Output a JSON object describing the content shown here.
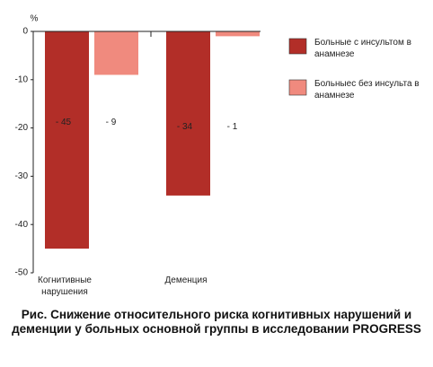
{
  "chart_data": {
    "type": "bar",
    "title": "Рис. Снижение относительного риска когнитивных нарушений и деменции у больных основной группы в исследовании PROGRESS",
    "y_label": "%",
    "categories": [
      "Когнитивные нарушения",
      "Деменция"
    ],
    "series": [
      {
        "name": "Больные с инсультом в анамнезе",
        "color": "#b22e28",
        "values": [
          -45,
          -34
        ],
        "value_labels": [
          "- 45",
          "- 34"
        ]
      },
      {
        "name": "Больныес без инсульта в анамнезе",
        "color": "#f08a7e",
        "values": [
          -9,
          -1
        ],
        "value_labels": [
          "- 9",
          "- 1"
        ]
      }
    ],
    "ylim": [
      -50,
      0
    ],
    "yticks": [
      0,
      -10,
      -20,
      -30,
      -40,
      -50
    ],
    "grid": false,
    "legend": "right"
  }
}
